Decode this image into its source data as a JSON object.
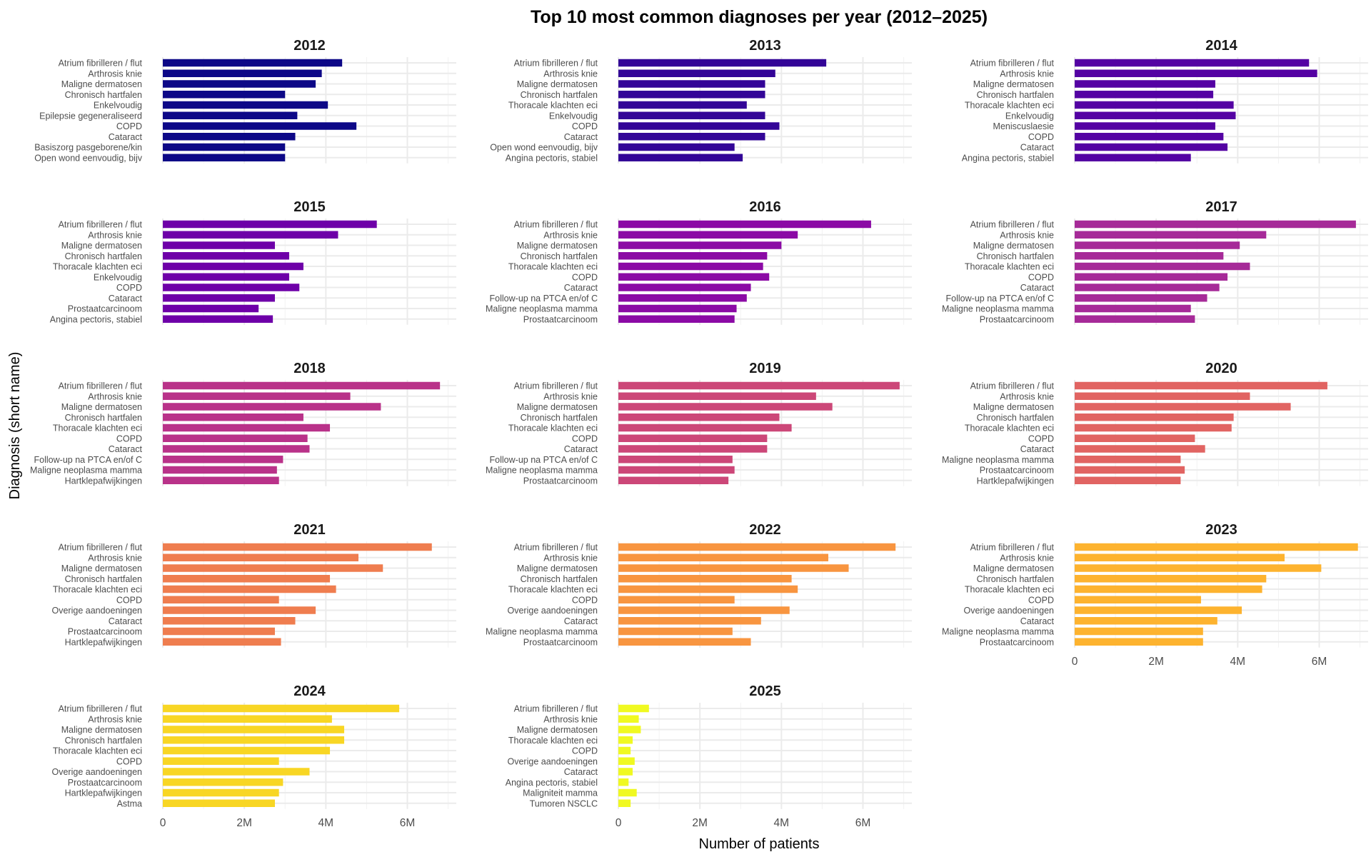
{
  "chart_data": {
    "type": "bar",
    "orientation": "horizontal",
    "title": "Top 10 most common diagnoses per year (2012–2025)",
    "xlabel": "Number of patients",
    "ylabel": "Diagnosis (short name)",
    "xlim": [
      0,
      7200000
    ],
    "xticks": [
      0,
      2000000,
      4000000,
      6000000
    ],
    "xtick_labels": [
      "0",
      "2M",
      "4M",
      "6M"
    ],
    "grid": true,
    "facet_layout": "3 columns, panels by year",
    "colors": {
      "2012": "#0d0887",
      "2013": "#330597",
      "2014": "#5402a3",
      "2015": "#6e00a8",
      "2016": "#8b0aa5",
      "2017": "#a62a98",
      "2018": "#b93289",
      "2019": "#cc4778",
      "2020": "#e16462",
      "2021": "#ef7d4f",
      "2022": "#f89540",
      "2023": "#fdb32f",
      "2024": "#f8d624",
      "2025": "#f0f921"
    },
    "panels": [
      {
        "year": "2012",
        "bars": [
          {
            "label": "Atrium fibrilleren / flut",
            "value": 4400000
          },
          {
            "label": "Arthrosis knie",
            "value": 3900000
          },
          {
            "label": "Maligne dermatosen",
            "value": 3750000
          },
          {
            "label": "Chronisch hartfalen",
            "value": 3000000
          },
          {
            "label": "Enkelvoudig",
            "value": 4050000
          },
          {
            "label": "Epilepsie gegeneraliseerd",
            "value": 3300000
          },
          {
            "label": "COPD",
            "value": 4750000
          },
          {
            "label": "Cataract",
            "value": 3250000
          },
          {
            "label": "Basiszorg pasgeborene/kin",
            "value": 3000000
          },
          {
            "label": "Open wond eenvoudig, bijv",
            "value": 3000000
          }
        ]
      },
      {
        "year": "2013",
        "bars": [
          {
            "label": "Atrium fibrilleren / flut",
            "value": 5100000
          },
          {
            "label": "Arthrosis knie",
            "value": 3850000
          },
          {
            "label": "Maligne dermatosen",
            "value": 3600000
          },
          {
            "label": "Chronisch hartfalen",
            "value": 3600000
          },
          {
            "label": "Thoracale klachten eci",
            "value": 3150000
          },
          {
            "label": "Enkelvoudig",
            "value": 3600000
          },
          {
            "label": "COPD",
            "value": 3950000
          },
          {
            "label": "Cataract",
            "value": 3600000
          },
          {
            "label": "Open wond eenvoudig, bijv",
            "value": 2850000
          },
          {
            "label": "Angina pectoris, stabiel",
            "value": 3050000
          }
        ]
      },
      {
        "year": "2014",
        "bars": [
          {
            "label": "Atrium fibrilleren / flut",
            "value": 5750000
          },
          {
            "label": "Arthrosis knie",
            "value": 5950000
          },
          {
            "label": "Maligne dermatosen",
            "value": 3450000
          },
          {
            "label": "Chronisch hartfalen",
            "value": 3400000
          },
          {
            "label": "Thoracale klachten eci",
            "value": 3900000
          },
          {
            "label": "Enkelvoudig",
            "value": 3950000
          },
          {
            "label": "Meniscuslaesie",
            "value": 3450000
          },
          {
            "label": "COPD",
            "value": 3650000
          },
          {
            "label": "Cataract",
            "value": 3750000
          },
          {
            "label": "Angina pectoris, stabiel",
            "value": 2850000
          }
        ]
      },
      {
        "year": "2015",
        "bars": [
          {
            "label": "Atrium fibrilleren / flut",
            "value": 5250000
          },
          {
            "label": "Arthrosis knie",
            "value": 4300000
          },
          {
            "label": "Maligne dermatosen",
            "value": 2750000
          },
          {
            "label": "Chronisch hartfalen",
            "value": 3100000
          },
          {
            "label": "Thoracale klachten eci",
            "value": 3450000
          },
          {
            "label": "Enkelvoudig",
            "value": 3100000
          },
          {
            "label": "COPD",
            "value": 3350000
          },
          {
            "label": "Cataract",
            "value": 2750000
          },
          {
            "label": "Prostaatcarcinoom",
            "value": 2350000
          },
          {
            "label": "Angina pectoris, stabiel",
            "value": 2700000
          }
        ]
      },
      {
        "year": "2016",
        "bars": [
          {
            "label": "Atrium fibrilleren / flut",
            "value": 6200000
          },
          {
            "label": "Arthrosis knie",
            "value": 4400000
          },
          {
            "label": "Maligne dermatosen",
            "value": 4000000
          },
          {
            "label": "Chronisch hartfalen",
            "value": 3650000
          },
          {
            "label": "Thoracale klachten eci",
            "value": 3550000
          },
          {
            "label": "COPD",
            "value": 3700000
          },
          {
            "label": "Cataract",
            "value": 3250000
          },
          {
            "label": "Follow-up na PTCA en/of C",
            "value": 3150000
          },
          {
            "label": "Maligne neoplasma mamma",
            "value": 2900000
          },
          {
            "label": "Prostaatcarcinoom",
            "value": 2850000
          }
        ]
      },
      {
        "year": "2017",
        "bars": [
          {
            "label": "Atrium fibrilleren / flut",
            "value": 6900000
          },
          {
            "label": "Arthrosis knie",
            "value": 4700000
          },
          {
            "label": "Maligne dermatosen",
            "value": 4050000
          },
          {
            "label": "Chronisch hartfalen",
            "value": 3650000
          },
          {
            "label": "Thoracale klachten eci",
            "value": 4300000
          },
          {
            "label": "COPD",
            "value": 3750000
          },
          {
            "label": "Cataract",
            "value": 3550000
          },
          {
            "label": "Follow-up na PTCA en/of C",
            "value": 3250000
          },
          {
            "label": "Maligne neoplasma mamma",
            "value": 2850000
          },
          {
            "label": "Prostaatcarcinoom",
            "value": 2950000
          }
        ]
      },
      {
        "year": "2018",
        "bars": [
          {
            "label": "Atrium fibrilleren / flut",
            "value": 6800000
          },
          {
            "label": "Arthrosis knie",
            "value": 4600000
          },
          {
            "label": "Maligne dermatosen",
            "value": 5350000
          },
          {
            "label": "Chronisch hartfalen",
            "value": 3450000
          },
          {
            "label": "Thoracale klachten eci",
            "value": 4100000
          },
          {
            "label": "COPD",
            "value": 3550000
          },
          {
            "label": "Cataract",
            "value": 3600000
          },
          {
            "label": "Follow-up na PTCA en/of C",
            "value": 2950000
          },
          {
            "label": "Maligne neoplasma mamma",
            "value": 2800000
          },
          {
            "label": "Hartklepafwijkingen",
            "value": 2850000
          }
        ]
      },
      {
        "year": "2019",
        "bars": [
          {
            "label": "Atrium fibrilleren / flut",
            "value": 6900000
          },
          {
            "label": "Arthrosis knie",
            "value": 4850000
          },
          {
            "label": "Maligne dermatosen",
            "value": 5250000
          },
          {
            "label": "Chronisch hartfalen",
            "value": 3950000
          },
          {
            "label": "Thoracale klachten eci",
            "value": 4250000
          },
          {
            "label": "COPD",
            "value": 3650000
          },
          {
            "label": "Cataract",
            "value": 3650000
          },
          {
            "label": "Follow-up na PTCA en/of C",
            "value": 2800000
          },
          {
            "label": "Maligne neoplasma mamma",
            "value": 2850000
          },
          {
            "label": "Prostaatcarcinoom",
            "value": 2700000
          }
        ]
      },
      {
        "year": "2020",
        "bars": [
          {
            "label": "Atrium fibrilleren / flut",
            "value": 6200000
          },
          {
            "label": "Arthrosis knie",
            "value": 4300000
          },
          {
            "label": "Maligne dermatosen",
            "value": 5300000
          },
          {
            "label": "Chronisch hartfalen",
            "value": 3900000
          },
          {
            "label": "Thoracale klachten eci",
            "value": 3850000
          },
          {
            "label": "COPD",
            "value": 2950000
          },
          {
            "label": "Cataract",
            "value": 3200000
          },
          {
            "label": "Maligne neoplasma mamma",
            "value": 2600000
          },
          {
            "label": "Prostaatcarcinoom",
            "value": 2700000
          },
          {
            "label": "Hartklepafwijkingen",
            "value": 2600000
          }
        ]
      },
      {
        "year": "2021",
        "bars": [
          {
            "label": "Atrium fibrilleren / flut",
            "value": 6600000
          },
          {
            "label": "Arthrosis knie",
            "value": 4800000
          },
          {
            "label": "Maligne dermatosen",
            "value": 5400000
          },
          {
            "label": "Chronisch hartfalen",
            "value": 4100000
          },
          {
            "label": "Thoracale klachten eci",
            "value": 4250000
          },
          {
            "label": "COPD",
            "value": 2850000
          },
          {
            "label": "Overige aandoeningen",
            "value": 3750000
          },
          {
            "label": "Cataract",
            "value": 3250000
          },
          {
            "label": "Prostaatcarcinoom",
            "value": 2750000
          },
          {
            "label": "Hartklepafwijkingen",
            "value": 2900000
          }
        ]
      },
      {
        "year": "2022",
        "bars": [
          {
            "label": "Atrium fibrilleren / flut",
            "value": 6800000
          },
          {
            "label": "Arthrosis knie",
            "value": 5150000
          },
          {
            "label": "Maligne dermatosen",
            "value": 5650000
          },
          {
            "label": "Chronisch hartfalen",
            "value": 4250000
          },
          {
            "label": "Thoracale klachten eci",
            "value": 4400000
          },
          {
            "label": "COPD",
            "value": 2850000
          },
          {
            "label": "Overige aandoeningen",
            "value": 4200000
          },
          {
            "label": "Cataract",
            "value": 3500000
          },
          {
            "label": "Maligne neoplasma mamma",
            "value": 2800000
          },
          {
            "label": "Prostaatcarcinoom",
            "value": 3250000
          }
        ]
      },
      {
        "year": "2023",
        "bars": [
          {
            "label": "Atrium fibrilleren / flut",
            "value": 6950000
          },
          {
            "label": "Arthrosis knie",
            "value": 5150000
          },
          {
            "label": "Maligne dermatosen",
            "value": 6050000
          },
          {
            "label": "Chronisch hartfalen",
            "value": 4700000
          },
          {
            "label": "Thoracale klachten eci",
            "value": 4600000
          },
          {
            "label": "COPD",
            "value": 3100000
          },
          {
            "label": "Overige aandoeningen",
            "value": 4100000
          },
          {
            "label": "Cataract",
            "value": 3500000
          },
          {
            "label": "Maligne neoplasma mamma",
            "value": 3150000
          },
          {
            "label": "Prostaatcarcinoom",
            "value": 3150000
          }
        ]
      },
      {
        "year": "2024",
        "bars": [
          {
            "label": "Atrium fibrilleren / flut",
            "value": 5800000
          },
          {
            "label": "Arthrosis knie",
            "value": 4150000
          },
          {
            "label": "Maligne dermatosen",
            "value": 4450000
          },
          {
            "label": "Chronisch hartfalen",
            "value": 4450000
          },
          {
            "label": "Thoracale klachten eci",
            "value": 4100000
          },
          {
            "label": "COPD",
            "value": 2850000
          },
          {
            "label": "Overige aandoeningen",
            "value": 3600000
          },
          {
            "label": "Prostaatcarcinoom",
            "value": 2950000
          },
          {
            "label": "Hartklepafwijkingen",
            "value": 2850000
          },
          {
            "label": "Astma",
            "value": 2750000
          }
        ]
      },
      {
        "year": "2025",
        "bars": [
          {
            "label": "Atrium fibrilleren / flut",
            "value": 750000
          },
          {
            "label": "Arthrosis knie",
            "value": 500000
          },
          {
            "label": "Maligne dermatosen",
            "value": 550000
          },
          {
            "label": "Thoracale klachten eci",
            "value": 350000
          },
          {
            "label": "COPD",
            "value": 300000
          },
          {
            "label": "Overige aandoeningen",
            "value": 400000
          },
          {
            "label": "Cataract",
            "value": 350000
          },
          {
            "label": "Angina pectoris, stabiel",
            "value": 250000
          },
          {
            "label": "Maligniteit mamma",
            "value": 450000
          },
          {
            "label": "Tumoren NSCLC",
            "value": 300000
          }
        ]
      }
    ]
  }
}
